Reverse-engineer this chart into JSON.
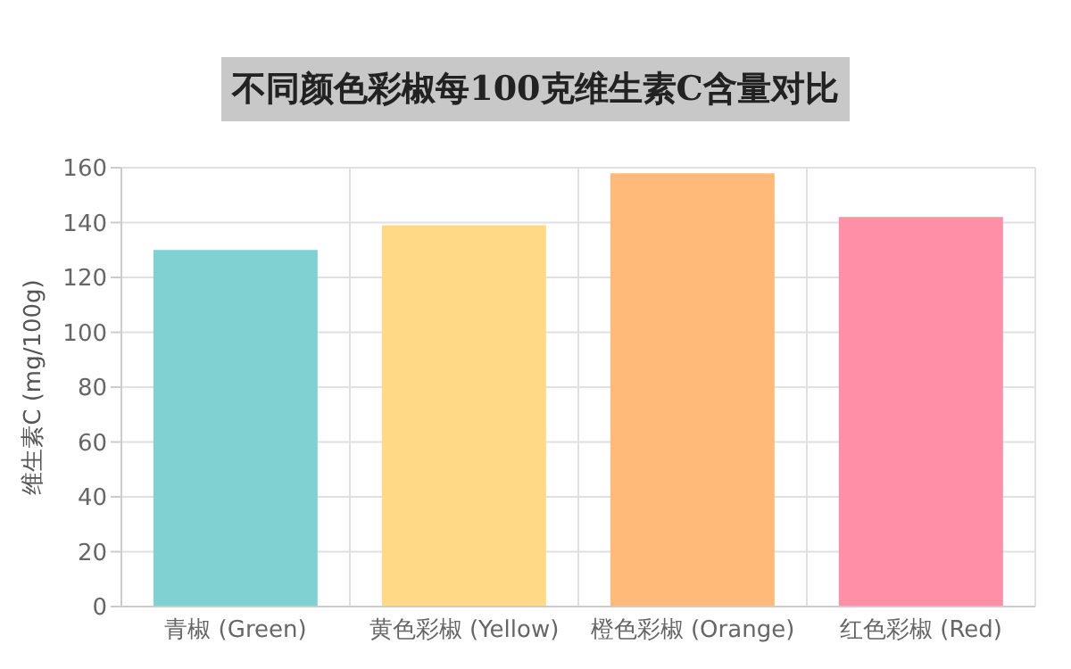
{
  "chart_data": {
    "type": "bar",
    "title": "不同颜色彩椒每100克维生素C含量对比",
    "ylabel": "维生素C (mg/100g)",
    "categories": [
      "青椒 (Green)",
      "黄色彩椒 (Yellow)",
      "橙色彩椒 (Orange)",
      "红色彩椒 (Red)"
    ],
    "values": [
      130,
      139,
      158,
      142
    ],
    "colors": [
      "#80d1d2",
      "#ffd986",
      "#ffba7a",
      "#ff8fa7"
    ],
    "ylim": [
      0,
      160
    ],
    "yticks": [
      0,
      20,
      40,
      60,
      80,
      100,
      120,
      140,
      160
    ],
    "grid": true
  }
}
